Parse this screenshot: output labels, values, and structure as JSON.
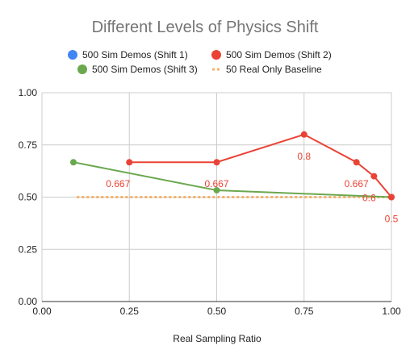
{
  "chart_data": {
    "type": "line",
    "title": "Different Levels of Physics Shift",
    "xlabel": "Real Sampling Ratio",
    "ylabel": "",
    "xlim": [
      0,
      1
    ],
    "ylim": [
      0,
      1
    ],
    "x_ticks": [
      "0.00",
      "0.25",
      "0.50",
      "0.75",
      "1.00"
    ],
    "y_ticks": [
      "0.00",
      "0.25",
      "0.50",
      "0.75",
      "1.00"
    ],
    "grid": true,
    "legend_position": "top",
    "series": [
      {
        "name": "500 Sim Demos (Shift 1)",
        "color": "#4285F4",
        "style": "line",
        "x": [],
        "y": [],
        "labels": []
      },
      {
        "name": "500 Sim Demos (Shift 2)",
        "color": "#EA4335",
        "style": "line",
        "x": [
          0.25,
          0.5,
          0.75,
          0.9,
          0.95,
          1.0
        ],
        "y": [
          0.667,
          0.667,
          0.8,
          0.667,
          0.6,
          0.5
        ],
        "labels": [
          "0.667",
          "0.667",
          "0.8",
          "0.667",
          "0.6",
          "0.5"
        ]
      },
      {
        "name": "500 Sim Demos (Shift 3)",
        "color": "#6AA84F",
        "style": "line",
        "x": [
          0.09,
          0.5,
          1.0
        ],
        "y": [
          0.667,
          0.533,
          0.5
        ],
        "labels": []
      },
      {
        "name": "50 Real Only Baseline",
        "color": "#F6B26B",
        "style": "dotted",
        "x": [
          0.1,
          1.0
        ],
        "y": [
          0.5,
          0.5
        ],
        "labels": []
      }
    ]
  }
}
